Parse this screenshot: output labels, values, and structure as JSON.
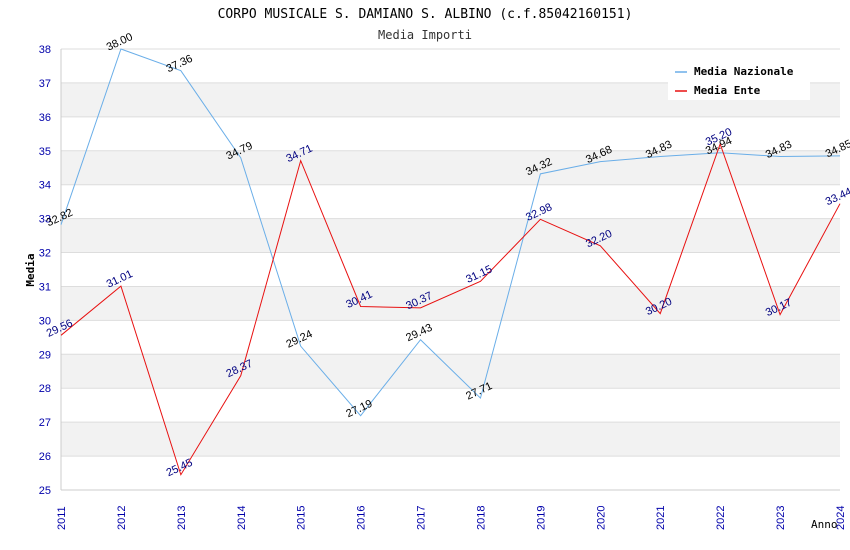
{
  "chart_data": {
    "type": "line",
    "title": "CORPO MUSICALE S. DAMIANO S. ALBINO (c.f.85042160151)",
    "subtitle": "Media Importi",
    "xlabel": "Anno",
    "ylabel": "Media",
    "ylim": [
      25,
      38
    ],
    "yticks": [
      25,
      26,
      27,
      28,
      29,
      30,
      31,
      32,
      33,
      34,
      35,
      36,
      37,
      38
    ],
    "categories": [
      "2011",
      "2012",
      "2013",
      "2014",
      "2015",
      "2016",
      "2017",
      "2018",
      "2019",
      "2020",
      "2021",
      "2022",
      "2023",
      "2024"
    ],
    "grid": true,
    "legend_position": "top-right",
    "series": [
      {
        "name": "Media Nazionale",
        "color": "#6aaee8",
        "label_color": "#000000",
        "values": [
          32.82,
          38.0,
          37.36,
          34.79,
          29.24,
          27.19,
          29.43,
          27.71,
          34.32,
          34.68,
          34.83,
          34.94,
          34.83,
          34.85
        ],
        "labels": [
          "32.82",
          "38.00",
          "37.36",
          "34.79",
          "29.24",
          "27.19",
          "29.43",
          "27.71",
          "34.32",
          "34.68",
          "34.83",
          "34.94",
          "34.83",
          "34.85"
        ]
      },
      {
        "name": "Media Ente",
        "color": "#e81010",
        "label_color": "#000080",
        "values": [
          29.56,
          31.01,
          25.45,
          28.37,
          34.71,
          30.41,
          30.37,
          31.15,
          32.98,
          32.2,
          30.2,
          35.2,
          30.17,
          33.44
        ],
        "labels": [
          "29.56",
          "31.01",
          "25.45",
          "28.37",
          "34.71",
          "30.41",
          "30.37",
          "31.15",
          "32.98",
          "32.20",
          "30.20",
          "35.20",
          "30.17",
          "33.44"
        ]
      }
    ]
  }
}
